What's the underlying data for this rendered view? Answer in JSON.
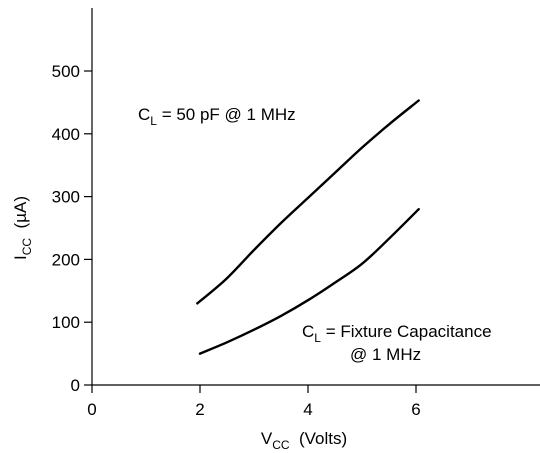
{
  "chart_data": {
    "type": "line",
    "xlabel": {
      "main": "V",
      "sub": "CC",
      "rest": "  (Volts)"
    },
    "ylabel": {
      "main": "I",
      "sub": "CC",
      "rest": "  (µA)"
    },
    "xlim": [
      0,
      8
    ],
    "ylim": [
      0,
      500
    ],
    "xticks": [
      0,
      2,
      4,
      6
    ],
    "yticks": [
      0,
      100,
      200,
      300,
      400,
      500
    ],
    "grid": false,
    "series": [
      {
        "label_main": "C",
        "label_sub": "L",
        "label_rest": " = 50 pF @ 1 MHz",
        "x": [
          1.95,
          2.5,
          3.0,
          3.5,
          4.0,
          4.5,
          5.0,
          5.5,
          6.05
        ],
        "y": [
          130,
          170,
          215,
          258,
          298,
          338,
          378,
          415,
          453
        ]
      },
      {
        "label_main": "C",
        "label_sub": "L",
        "label_rest": " = Fixture Capacitance",
        "label_line2": "@ 1 MHz",
        "x": [
          2.0,
          2.5,
          3.0,
          3.5,
          4.0,
          4.5,
          5.0,
          5.5,
          6.05
        ],
        "y": [
          50,
          68,
          88,
          110,
          135,
          163,
          193,
          233,
          280
        ]
      }
    ]
  }
}
